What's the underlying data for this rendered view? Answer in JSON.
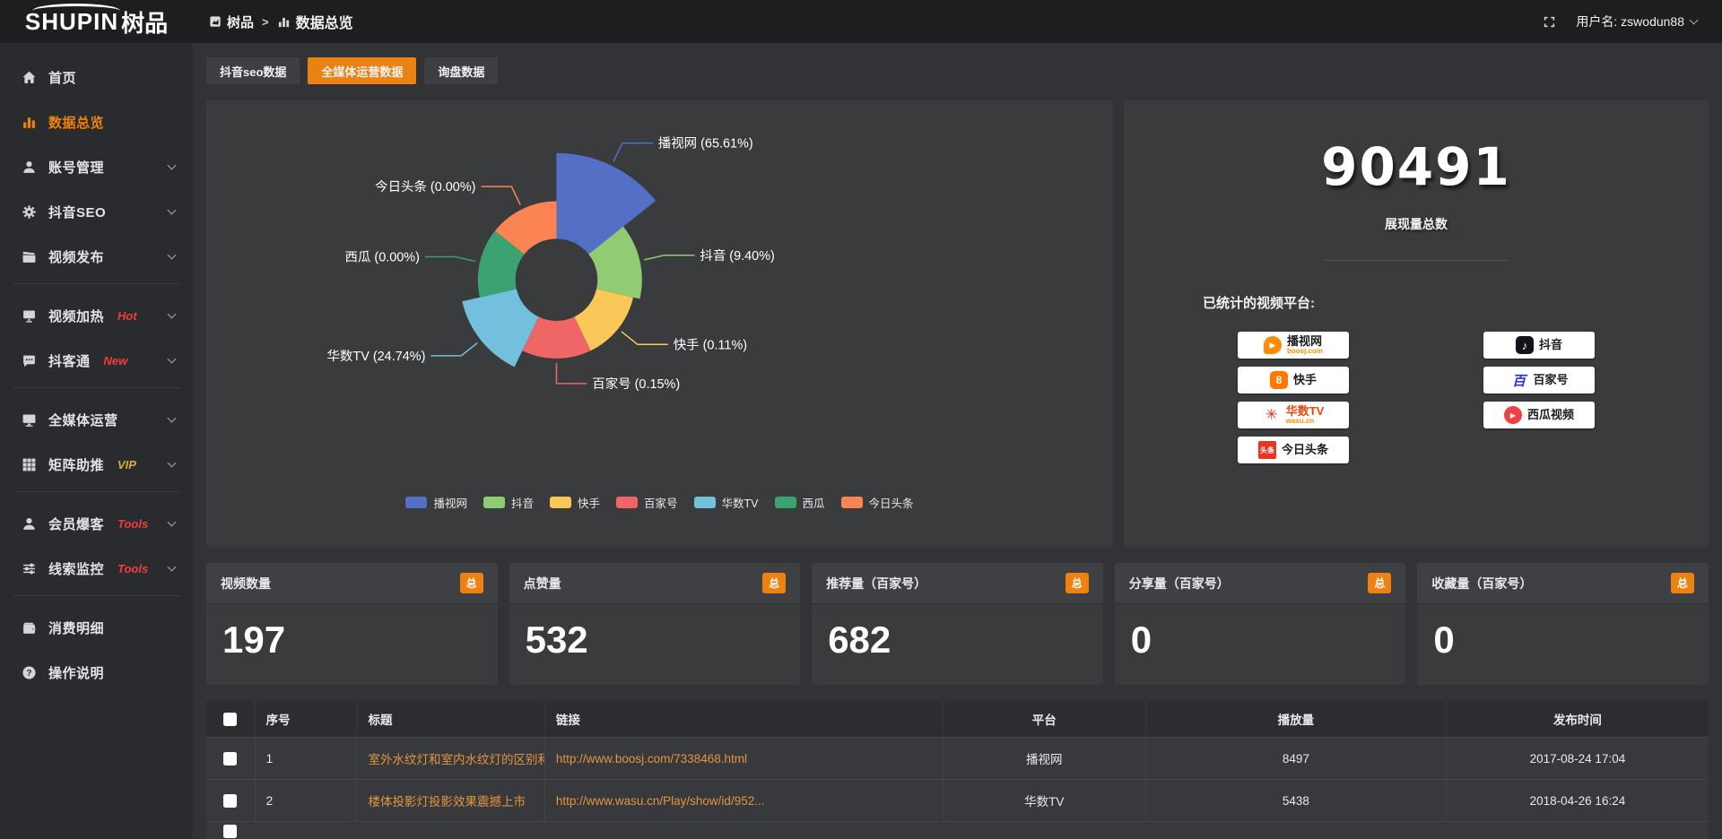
{
  "header": {
    "logo_main": "SHUPIN",
    "logo_suffix": "树品",
    "breadcrumb": {
      "root": "树品",
      "separator": ">",
      "current": "数据总览"
    },
    "username": "用户名: zswodun88"
  },
  "sidebar": {
    "items": [
      {
        "icon": "home-icon",
        "label": "首页"
      },
      {
        "icon": "bar-chart-icon",
        "label": "数据总览",
        "active": true
      },
      {
        "icon": "user-icon",
        "label": "账号管理",
        "chevron": true
      },
      {
        "icon": "gear-icon",
        "label": "抖音SEO",
        "chevron": true
      },
      {
        "icon": "clapper-icon",
        "label": "视频发布",
        "chevron": true,
        "divider_after": true
      },
      {
        "icon": "screen-icon",
        "label": "视频加热",
        "badge": "Hot",
        "badge_color": "#f23c3c",
        "chevron": true
      },
      {
        "icon": "chat-icon",
        "label": "抖客通",
        "badge": "New",
        "badge_color": "#f23c3c",
        "chevron": true,
        "divider_after": true
      },
      {
        "icon": "monitor-icon",
        "label": "全媒体运营",
        "chevron": true
      },
      {
        "icon": "grid-icon",
        "label": "矩阵助推",
        "badge": "VIP",
        "badge_color": "#d9ae3c",
        "chevron": true,
        "divider_after": true
      },
      {
        "icon": "member-icon",
        "label": "会员爆客",
        "badge": "Tools",
        "badge_color": "#f23c3c",
        "chevron": true
      },
      {
        "icon": "sliders-icon",
        "label": "线索监控",
        "badge": "Tools",
        "badge_color": "#f23c3c",
        "chevron": true,
        "divider_after": true
      },
      {
        "icon": "wallet-icon",
        "label": "消费明细"
      },
      {
        "icon": "help-icon",
        "label": "操作说明"
      }
    ]
  },
  "tabs": [
    {
      "label": "抖音seo数据",
      "active": false
    },
    {
      "label": "全媒体运营数据",
      "active": true
    },
    {
      "label": "询盘数据",
      "active": false
    }
  ],
  "chart_data": {
    "type": "pie",
    "variant": "nightingale-rose",
    "categories": [
      "播视网",
      "抖音",
      "快手",
      "百家号",
      "华数TV",
      "西瓜",
      "今日头条"
    ],
    "values": [
      65.61,
      9.4,
      0.11,
      0.15,
      24.74,
      0.0,
      0.0
    ],
    "value_labels": [
      "65.61%",
      "9.40%",
      "0.11%",
      "0.15%",
      "24.74%",
      "0.00%",
      "0.00%"
    ],
    "colors": [
      "#5470c6",
      "#91cc75",
      "#fac858",
      "#ee6666",
      "#73c0de",
      "#3ba272",
      "#fc8452"
    ],
    "legend_position": "bottom",
    "unit": "percent of 展现量"
  },
  "summary": {
    "total_value": "90491",
    "total_label": "展现量总数",
    "platforms": {
      "label": "已统计的视频平台:",
      "columns": [
        [
          {
            "name": "播视网",
            "sub": "boosj.com",
            "logo": "boosj-logo"
          },
          {
            "name": "快手",
            "logo": "kuaishou-logo"
          },
          {
            "name": "华数TV",
            "sub": "wasu.cn",
            "logo": "wasu-logo",
            "name_color": "#e8490f"
          },
          {
            "name": "今日头条",
            "logo": "toutiao-logo"
          }
        ],
        [
          {
            "name": "抖音",
            "logo": "douyin-logo"
          },
          {
            "name": "百家号",
            "logo": "baijiahao-logo"
          },
          {
            "name": "西瓜视频",
            "logo": "xigua-logo"
          }
        ]
      ]
    }
  },
  "stat_cards": {
    "badge": "总",
    "items": [
      {
        "title": "视频数量",
        "value": "197"
      },
      {
        "title": "点赞量",
        "value": "532"
      },
      {
        "title": "推荐量（百家号）",
        "value": "682"
      },
      {
        "title": "分享量（百家号）",
        "value": "0"
      },
      {
        "title": "收藏量（百家号）",
        "value": "0"
      }
    ]
  },
  "table": {
    "headers": [
      "序号",
      "标题",
      "链接",
      "平台",
      "播放量",
      "发布时间"
    ],
    "rows": [
      {
        "index": "1",
        "title": "室外水纹灯和室内水纹灯的区别和简介",
        "link": "http://www.boosj.com/7338468.html",
        "platform": "播视网",
        "plays": "8497",
        "time": "2017-08-24 17:04"
      },
      {
        "index": "2",
        "title": "楼体投影灯投影效果震撼上市",
        "link": "http://www.wasu.cn/Play/show/id/952...",
        "platform": "华数TV",
        "plays": "5438",
        "time": "2018-04-26 16:24"
      }
    ]
  },
  "colors": {
    "accent_orange": "#ea8113",
    "link_orange": "#e2953f",
    "badge_red": "#f23c3c",
    "badge_gold": "#d9ae3c",
    "panel_bg": "#3a3b3d",
    "sidebar_bg": "#2a2b2e",
    "topbar_bg": "#1d1e20"
  }
}
